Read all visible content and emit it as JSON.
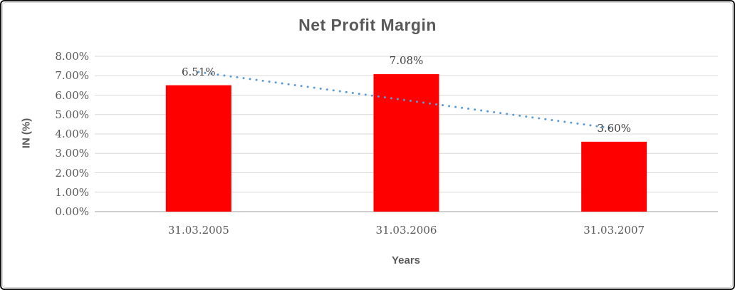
{
  "chart_data": {
    "type": "bar",
    "title": "Net Profit Margin",
    "xlabel": "Years",
    "ylabel": "IN (%)",
    "categories": [
      "31.03.2005",
      "31.03.2006",
      "31.03.2007"
    ],
    "values": [
      6.51,
      7.08,
      3.6
    ],
    "data_labels": [
      "6.51%",
      "7.08%",
      "3.60%"
    ],
    "ylim": [
      0,
      8
    ],
    "ytick_step": 1,
    "ytick_labels": [
      "0.00%",
      "1.00%",
      "2.00%",
      "3.00%",
      "4.00%",
      "5.00%",
      "6.00%",
      "7.00%",
      "8.00%"
    ],
    "grid": true,
    "legend": "none",
    "bar_color": "#ff0000",
    "gridline_color": "#d9d9d9",
    "axis_line_color": "#bfbfbf",
    "title_color": "#595959",
    "axis_text_color": "#595959",
    "data_label_color": "#404040",
    "trendline": {
      "type": "linear",
      "style": "dotted",
      "color": "#5b9bd5",
      "start_value": 7.19,
      "end_value": 4.28
    }
  }
}
